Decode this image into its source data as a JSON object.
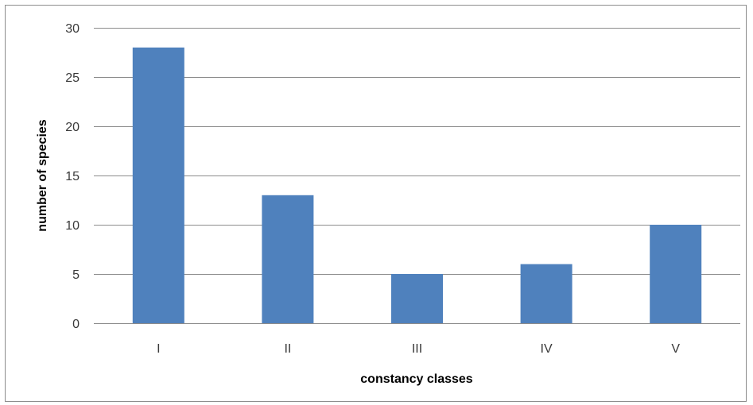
{
  "chart_data": {
    "type": "bar",
    "title": "",
    "categories": [
      "I",
      "II",
      "III",
      "IV",
      "V"
    ],
    "values": [
      28,
      13,
      5,
      6,
      10
    ],
    "xlabel": "constancy classes",
    "ylabel": "number of species",
    "ylim": [
      0,
      30
    ],
    "yticks": [
      0,
      5,
      10,
      15,
      20,
      25,
      30
    ],
    "grid": true,
    "legend": "none",
    "bar_color": "#4f81bd",
    "grid_color": "#8c8c8c"
  }
}
